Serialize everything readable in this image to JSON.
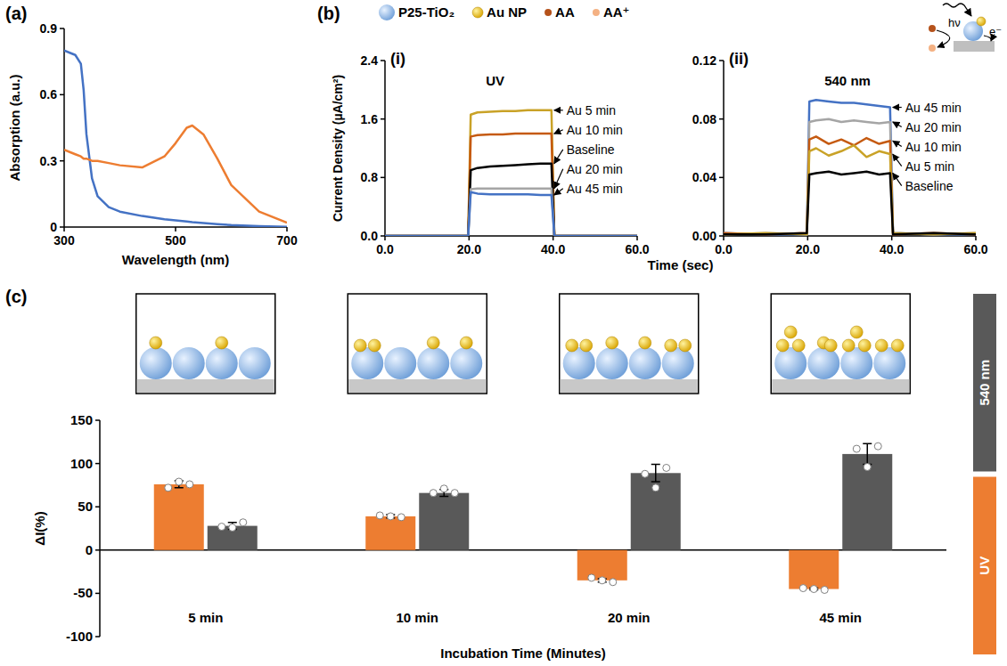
{
  "figure": {
    "panels": [
      "(a)",
      "(b)",
      "(c)"
    ],
    "b_legend": [
      "P25-TiO₂",
      "Au NP",
      "AA",
      "AA⁺"
    ],
    "b_scheme": [
      "hν",
      "e⁻"
    ],
    "b_xlabel": "Time (sec)",
    "b_ylabel": "Current Density (µA/cm²)"
  },
  "chart_data": [
    {
      "type": "line",
      "xlabel": "Wavelength (nm)",
      "ylabel": "Absorption (a.u.)",
      "xlim": [
        300,
        700
      ],
      "xticks": [
        300,
        500,
        700
      ],
      "ylim": [
        0,
        0.9
      ],
      "yticks": [
        0,
        0.3,
        0.6,
        0.9
      ],
      "x": [
        300,
        310,
        320,
        330,
        335,
        340,
        350,
        360,
        380,
        400,
        440,
        480,
        500,
        520,
        530,
        550,
        575,
        600,
        650,
        700
      ],
      "series": [
        {
          "color": "#4472c4",
          "values": [
            0.8,
            0.79,
            0.78,
            0.74,
            0.62,
            0.42,
            0.22,
            0.14,
            0.09,
            0.07,
            0.05,
            0.035,
            0.03,
            0.025,
            0.022,
            0.018,
            0.013,
            0.009,
            0.004,
            0.001
          ]
        },
        {
          "color": "#ed7d31",
          "values": [
            0.35,
            0.34,
            0.33,
            0.32,
            0.31,
            0.31,
            0.3,
            0.3,
            0.29,
            0.28,
            0.27,
            0.32,
            0.38,
            0.45,
            0.46,
            0.42,
            0.31,
            0.19,
            0.07,
            0.02
          ]
        }
      ]
    },
    {
      "type": "line",
      "title": "(i)",
      "subtitle": "UV",
      "xlim": [
        0,
        60
      ],
      "xticks": [
        {
          "value": 0,
          "label": "0.0"
        },
        {
          "value": 20,
          "label": "20.0"
        },
        {
          "value": 40,
          "label": "40.0"
        },
        {
          "value": 60,
          "label": "60.0"
        }
      ],
      "ylim": [
        0,
        2.4
      ],
      "yticks": [
        {
          "value": 0,
          "label": "0.0"
        },
        0.8,
        1.6,
        2.4
      ],
      "x": [
        0,
        10,
        19.8,
        20.4,
        22,
        25,
        28,
        31,
        34,
        37,
        39.6,
        40.3,
        50,
        60
      ],
      "series": [
        {
          "name": "Au 5 min",
          "color": "#c9a227",
          "values": [
            0,
            0,
            0,
            1.66,
            1.69,
            1.7,
            1.71,
            1.71,
            1.72,
            1.72,
            1.72,
            0,
            0,
            0
          ]
        },
        {
          "name": "Au 10 min",
          "color": "#c55a11",
          "values": [
            0,
            0,
            0,
            1.36,
            1.38,
            1.39,
            1.39,
            1.4,
            1.4,
            1.4,
            1.4,
            0,
            0,
            0
          ]
        },
        {
          "name": "Baseline",
          "color": "#000000",
          "values": [
            0,
            0,
            0,
            0.9,
            0.93,
            0.95,
            0.96,
            0.97,
            0.98,
            0.99,
            0.99,
            0,
            0,
            0
          ]
        },
        {
          "name": "Au 20 min",
          "color": "#a5a5a5",
          "values": [
            0,
            0,
            0,
            0.64,
            0.65,
            0.65,
            0.65,
            0.65,
            0.65,
            0.65,
            0.65,
            0,
            0,
            0
          ]
        },
        {
          "name": "Au 45 min",
          "color": "#4472c4",
          "values": [
            0,
            0,
            0,
            0.6,
            0.58,
            0.57,
            0.57,
            0.57,
            0.57,
            0.56,
            0.56,
            0,
            0,
            0
          ]
        }
      ]
    },
    {
      "type": "line",
      "title": "(ii)",
      "subtitle": "540 nm",
      "xlim": [
        0,
        60
      ],
      "xticks": [
        {
          "value": 0,
          "label": "0.0"
        },
        {
          "value": 20,
          "label": "20.0"
        },
        {
          "value": 40,
          "label": "40.0"
        },
        {
          "value": 60,
          "label": "60.0"
        }
      ],
      "ylim": [
        0,
        0.12
      ],
      "yticks": [
        {
          "value": 0,
          "label": "0.00"
        },
        {
          "value": 0.04,
          "label": "0.04"
        },
        {
          "value": 0.08,
          "label": "0.08"
        },
        {
          "value": 0.12,
          "label": "0.12"
        }
      ],
      "x": [
        0,
        10,
        19.8,
        20.4,
        22,
        25,
        28,
        31,
        34,
        37,
        39.6,
        40.3,
        50,
        60
      ],
      "series": [
        {
          "name": "Au 45 min",
          "color": "#4472c4",
          "values": [
            0.002,
            0.001,
            0.001,
            0.092,
            0.093,
            0.092,
            0.091,
            0.091,
            0.09,
            0.089,
            0.088,
            0.002,
            0.001,
            0.001
          ]
        },
        {
          "name": "Au 20 min",
          "color": "#a5a5a5",
          "values": [
            0.001,
            0.002,
            0.001,
            0.078,
            0.079,
            0.08,
            0.078,
            0.079,
            0.078,
            0.077,
            0.078,
            0.002,
            0.001,
            0.002
          ]
        },
        {
          "name": "Au 10 min",
          "color": "#c55a11",
          "values": [
            0.002,
            0.001,
            0.002,
            0.066,
            0.068,
            0.063,
            0.066,
            0.062,
            0.067,
            0.063,
            0.065,
            0.001,
            0.002,
            0.001
          ]
        },
        {
          "name": "Au 5 min",
          "color": "#c9a227",
          "values": [
            0.001,
            0.002,
            0.001,
            0.058,
            0.06,
            0.055,
            0.058,
            0.062,
            0.054,
            0.058,
            0.056,
            0.002,
            0.001,
            0.002
          ]
        },
        {
          "name": "Baseline",
          "color": "#000000",
          "values": [
            0.001,
            0.001,
            0.002,
            0.042,
            0.043,
            0.044,
            0.042,
            0.043,
            0.044,
            0.042,
            0.043,
            0.001,
            0.002,
            0.001
          ]
        }
      ]
    },
    {
      "type": "bar",
      "xlabel": "Incubation Time (Minutes)",
      "ylabel": "ΔI(%)",
      "categories": [
        "5 min",
        "10 min",
        "20 min",
        "45 min"
      ],
      "ylim": [
        -100,
        150
      ],
      "yticks": [
        -100,
        -50,
        0,
        50,
        100,
        150
      ],
      "legend": "right",
      "series": [
        {
          "name": "UV",
          "color": "#ed7d31",
          "values": [
            76,
            39,
            -35,
            -45
          ],
          "errors": [
            4,
            2,
            2,
            1
          ],
          "points": [
            [
              72,
              79,
              76
            ],
            [
              40,
              39,
              38
            ],
            [
              -32,
              -35,
              -37
            ],
            [
              -44,
              -45,
              -46
            ]
          ]
        },
        {
          "name": "540 nm",
          "color": "#595959",
          "values": [
            28,
            66,
            89,
            111
          ],
          "errors": [
            4,
            4,
            10,
            12
          ],
          "points": [
            [
              27,
              26,
              32
            ],
            [
              66,
              71,
              66
            ],
            [
              88,
              72,
              95
            ],
            [
              117,
              96,
              120
            ]
          ]
        }
      ]
    }
  ]
}
